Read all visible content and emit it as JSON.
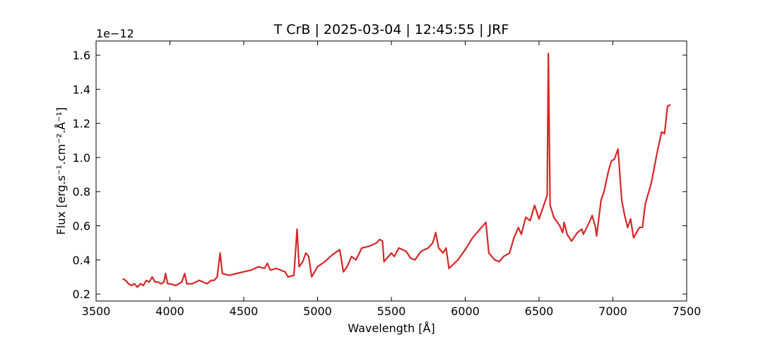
{
  "chart_data": {
    "type": "line",
    "title": "T CrB | 2025-03-04 | 12:45:55 | JRF",
    "xlabel": "Wavelength [Å]",
    "ylabel": "Flux [erg.s⁻¹.cm⁻².Å⁻¹]",
    "y_offset_label": "1e−12",
    "x": [
      3680,
      3700,
      3720,
      3740,
      3760,
      3780,
      3800,
      3820,
      3840,
      3860,
      3880,
      3900,
      3920,
      3940,
      3960,
      3970,
      3985,
      4000,
      4040,
      4080,
      4100,
      4115,
      4150,
      4200,
      4250,
      4280,
      4300,
      4320,
      4340,
      4355,
      4400,
      4450,
      4500,
      4550,
      4600,
      4640,
      4660,
      4680,
      4720,
      4780,
      4800,
      4840,
      4861,
      4875,
      4900,
      4920,
      4940,
      4960,
      5000,
      5050,
      5100,
      5150,
      5175,
      5200,
      5230,
      5260,
      5300,
      5350,
      5400,
      5420,
      5440,
      5450,
      5500,
      5520,
      5550,
      5600,
      5630,
      5660,
      5700,
      5750,
      5780,
      5800,
      5820,
      5850,
      5870,
      5890,
      5950,
      6000,
      6050,
      6100,
      6140,
      6160,
      6200,
      6230,
      6260,
      6300,
      6330,
      6360,
      6380,
      6410,
      6440,
      6470,
      6500,
      6540,
      6555,
      6563,
      6575,
      6600,
      6640,
      6660,
      6670,
      6690,
      6720,
      6760,
      6790,
      6800,
      6840,
      6860,
      6880,
      6890,
      6920,
      6940,
      6970,
      6990,
      7010,
      7035,
      7060,
      7080,
      7100,
      7120,
      7140,
      7180,
      7200,
      7220,
      7260,
      7300,
      7330,
      7350,
      7370,
      7390
    ],
    "series": [
      {
        "color": "#d62728",
        "values": [
          0.29,
          0.28,
          0.26,
          0.25,
          0.26,
          0.24,
          0.26,
          0.25,
          0.28,
          0.27,
          0.3,
          0.27,
          0.27,
          0.26,
          0.27,
          0.32,
          0.26,
          0.26,
          0.25,
          0.27,
          0.32,
          0.26,
          0.26,
          0.28,
          0.26,
          0.28,
          0.28,
          0.3,
          0.44,
          0.32,
          0.31,
          0.32,
          0.33,
          0.34,
          0.36,
          0.35,
          0.38,
          0.34,
          0.35,
          0.33,
          0.3,
          0.31,
          0.58,
          0.36,
          0.39,
          0.44,
          0.42,
          0.3,
          0.36,
          0.39,
          0.43,
          0.46,
          0.33,
          0.36,
          0.42,
          0.4,
          0.47,
          0.48,
          0.5,
          0.52,
          0.51,
          0.39,
          0.44,
          0.42,
          0.47,
          0.45,
          0.41,
          0.4,
          0.45,
          0.47,
          0.5,
          0.56,
          0.47,
          0.44,
          0.47,
          0.35,
          0.4,
          0.46,
          0.53,
          0.58,
          0.62,
          0.44,
          0.4,
          0.39,
          0.42,
          0.44,
          0.53,
          0.59,
          0.55,
          0.65,
          0.63,
          0.72,
          0.64,
          0.74,
          0.78,
          1.61,
          0.72,
          0.65,
          0.6,
          0.56,
          0.62,
          0.55,
          0.51,
          0.56,
          0.58,
          0.55,
          0.62,
          0.66,
          0.6,
          0.54,
          0.75,
          0.8,
          0.92,
          0.98,
          0.99,
          1.05,
          0.75,
          0.66,
          0.59,
          0.64,
          0.53,
          0.59,
          0.59,
          0.73,
          0.85,
          1.03,
          1.15,
          1.14,
          1.3,
          1.31
        ]
      }
    ],
    "xlim": [
      3500,
      7500
    ],
    "ylim": [
      0.159,
      1.683
    ],
    "xticks": [
      3500,
      4000,
      4500,
      5000,
      5500,
      6000,
      6500,
      7000,
      7500
    ],
    "yticks": [
      0.2,
      0.4,
      0.6,
      0.8,
      {
        "value": 1,
        "label": "1.0"
      },
      1.2,
      1.4,
      1.6
    ]
  }
}
